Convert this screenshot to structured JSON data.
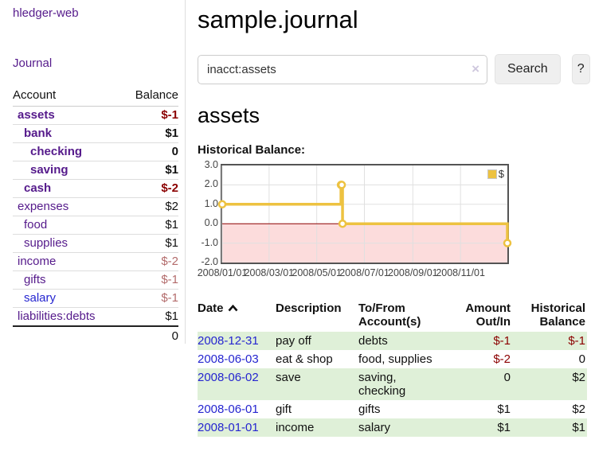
{
  "colors": {
    "purple_link": "#551a8b",
    "blue_link": "#2525d0",
    "negative_strong": "#8b0000",
    "negative_soft": "#b36b6b",
    "row_shade_green": "#dff0d8",
    "chart_line_gold": "#edc240",
    "negative_region_pink": "#fcdcdc",
    "zero_line_maroon": "#8b0000",
    "button_bg": "#efefef"
  },
  "sidebar": {
    "brand": "hledger-web",
    "journal_link": "Journal",
    "accounts": {
      "header_account": "Account",
      "header_balance": "Balance",
      "rows": [
        {
          "name": "assets",
          "level": 1,
          "balance": "$-1",
          "bold": true,
          "balance_style": "neg-strong",
          "link_style": "purple"
        },
        {
          "name": "bank",
          "level": 2,
          "balance": "$1",
          "bold": true,
          "balance_style": "pos",
          "link_style": "purple"
        },
        {
          "name": "checking",
          "level": 3,
          "balance": "0",
          "bold": true,
          "balance_style": "pos",
          "link_style": "purple"
        },
        {
          "name": "saving",
          "level": 3,
          "balance": "$1",
          "bold": true,
          "balance_style": "pos",
          "link_style": "purple"
        },
        {
          "name": "cash",
          "level": 2,
          "balance": "$-2",
          "bold": true,
          "balance_style": "neg-strong",
          "link_style": "purple"
        },
        {
          "name": "expenses",
          "level": 1,
          "balance": "$2",
          "bold": false,
          "balance_style": "pos",
          "link_style": "purple"
        },
        {
          "name": "food",
          "level": 2,
          "balance": "$1",
          "bold": false,
          "balance_style": "pos",
          "link_style": "purple"
        },
        {
          "name": "supplies",
          "level": 2,
          "balance": "$1",
          "bold": false,
          "balance_style": "pos",
          "link_style": "purple"
        },
        {
          "name": "income",
          "level": 1,
          "balance": "$-2",
          "bold": false,
          "balance_style": "neg-soft",
          "link_style": "purple"
        },
        {
          "name": "gifts",
          "level": 2,
          "balance": "$-1",
          "bold": false,
          "balance_style": "neg-soft",
          "link_style": "purple"
        },
        {
          "name": "salary",
          "level": 2,
          "balance": "$-1",
          "bold": false,
          "balance_style": "neg-soft",
          "link_style": "blue"
        },
        {
          "name": "liabilities:debts",
          "level": 1,
          "balance": "$1",
          "bold": false,
          "balance_style": "pos",
          "link_style": "purple"
        }
      ],
      "total": "0"
    }
  },
  "main": {
    "title": "sample.journal",
    "search": {
      "value": "inacct:assets",
      "clear_icon": "×",
      "search_button": "Search",
      "help_button": "?"
    },
    "account_heading": "assets",
    "chart_title": "Historical Balance:"
  },
  "chart_data": {
    "type": "line",
    "step": true,
    "title": "Historical Balance",
    "xrange": [
      "2008-01-01",
      "2008-12-31"
    ],
    "ylim": [
      -2,
      3
    ],
    "yticks": [
      "3.0",
      "2.0",
      "1.0",
      "0.0",
      "-1.0",
      "-2.0"
    ],
    "xticks": [
      "2008/01/01",
      "2008/03/01",
      "2008/05/01",
      "2008/07/01",
      "2008/09/01",
      "2008/11/01"
    ],
    "series": [
      {
        "name": "$",
        "color": "#edc240",
        "points": [
          [
            "2008-01-01",
            1
          ],
          [
            "2008-06-01",
            2
          ],
          [
            "2008-06-02",
            2
          ],
          [
            "2008-06-03",
            0
          ],
          [
            "2008-12-31",
            -1
          ]
        ]
      }
    ],
    "negative_region_fill": "#fcdcdc",
    "zero_line_color": "#8b0000",
    "grid_color": "#e0e0e0",
    "legend_position": "top-right",
    "grid": true
  },
  "transactions": {
    "headers": {
      "date": "Date",
      "description": "Description",
      "tofrom_line1": "To/From",
      "tofrom_line2": "Account(s)",
      "amount_line1": "Amount",
      "amount_line2": "Out/In",
      "balance_line1": "Historical",
      "balance_line2": "Balance"
    },
    "rows": [
      {
        "date": "2008-12-31",
        "description": "pay off",
        "accounts": "debts",
        "amount": "$-1",
        "amount_style": "neg",
        "balance": "$-1",
        "balance_style": "neg",
        "shaded": true
      },
      {
        "date": "2008-06-03",
        "description": "eat & shop",
        "accounts": "food, supplies",
        "amount": "$-2",
        "amount_style": "neg",
        "balance": "0",
        "balance_style": "pos",
        "shaded": false
      },
      {
        "date": "2008-06-02",
        "description": "save",
        "accounts": "saving, checking",
        "amount": "0",
        "amount_style": "pos",
        "balance": "$2",
        "balance_style": "pos",
        "shaded": true
      },
      {
        "date": "2008-06-01",
        "description": "gift",
        "accounts": "gifts",
        "amount": "$1",
        "amount_style": "pos",
        "balance": "$2",
        "balance_style": "pos",
        "shaded": false
      },
      {
        "date": "2008-01-01",
        "description": "income",
        "accounts": "salary",
        "amount": "$1",
        "amount_style": "pos",
        "balance": "$1",
        "balance_style": "pos",
        "shaded": true
      }
    ]
  }
}
